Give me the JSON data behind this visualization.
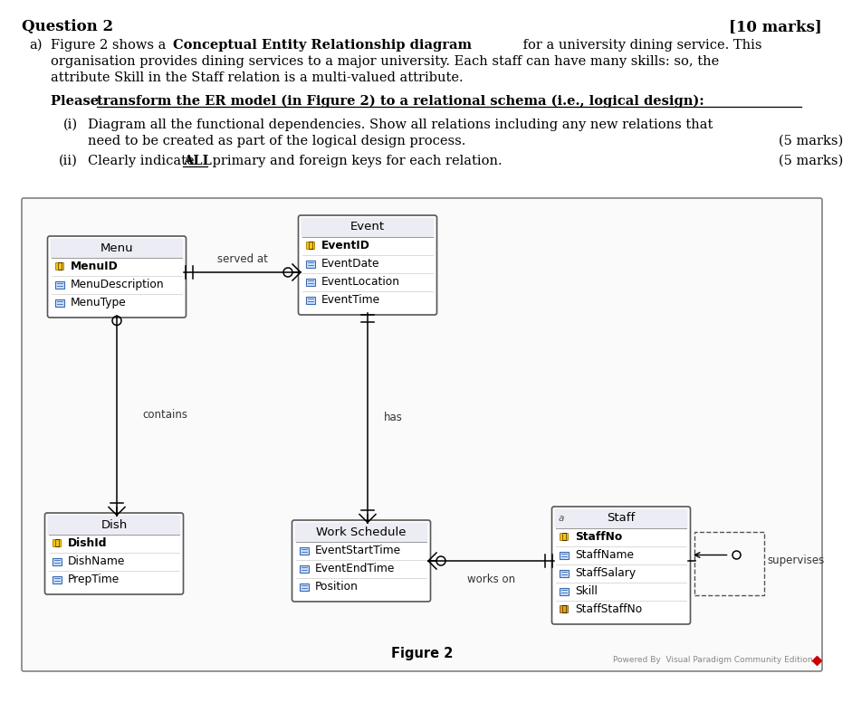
{
  "title_left": "Question 2",
  "title_right": "[10 marks]",
  "para_a_prefix": "a)",
  "para_a_normal1": "Figure 2 shows a  ",
  "para_a_bold": "Conceptual Entity Relationship diagram",
  "para_a_normal2": " for a university dining service. This",
  "para_a_line2": "organisation provides dining services to a major university. Each staff can have many skills: so, the",
  "para_a_line3": "attribute Skill in the Staff relation is a multi-valued attribute.",
  "instr_plain": "Please ",
  "instr_underlined": "transform the ER model (in Figure 2) to a relational schema (i.e., logical design):",
  "item_i_label": "(i)",
  "item_i_text1": "Diagram all the functional dependencies. Show all relations including any new relations that",
  "item_i_text2": "need to be created as part of the logical design process.",
  "item_i_marks": "(5 marks)",
  "item_ii_label": "(ii)",
  "item_ii_text1": "Clearly indicate ",
  "item_ii_bold": "ALL",
  "item_ii_text2": " primary and foreign keys for each relation.",
  "item_ii_marks": "(5 marks)",
  "figure_label": "Figure 2",
  "watermark": "Powered By  Visual Paradigm Community Edition",
  "menu_title": "Menu",
  "menu_attrs": [
    "MenuID",
    "MenuDescription",
    "MenuType"
  ],
  "menu_key": [
    true,
    false,
    false
  ],
  "event_title": "Event",
  "event_attrs": [
    "EventID",
    "EventDate",
    "EventLocation",
    "EventTime"
  ],
  "event_key": [
    true,
    false,
    false,
    false
  ],
  "dish_title": "Dish",
  "dish_attrs": [
    "DishId",
    "DishName",
    "PrepTime"
  ],
  "dish_key": [
    true,
    false,
    false
  ],
  "ws_title": "Work Schedule",
  "ws_attrs": [
    "EventStartTime",
    "EventEndTime",
    "Position"
  ],
  "ws_key": [
    false,
    false,
    false
  ],
  "staff_title": "Staff",
  "staff_attrs": [
    "StaffNo",
    "StaffName",
    "StaffSalary",
    "Skill",
    "StaffStaffNo"
  ],
  "staff_key": [
    true,
    false,
    false,
    false,
    false
  ],
  "staff_fk": [
    false,
    false,
    false,
    false,
    true
  ],
  "rel_served_at": "served at",
  "rel_contains": "contains",
  "rel_has": "has",
  "rel_works_on": "works on",
  "rel_supervises": "supervises"
}
